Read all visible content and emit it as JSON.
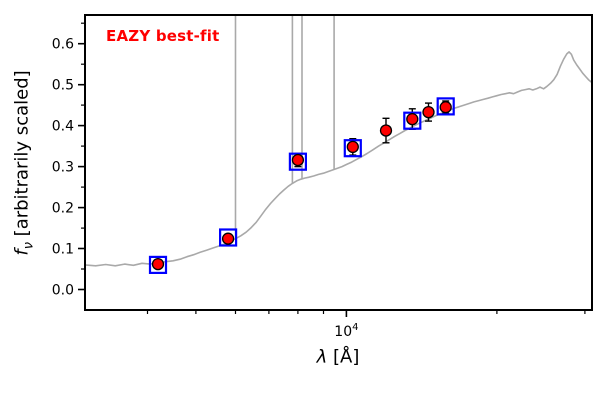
{
  "annotation": {
    "label": "EAZY best-fit",
    "color": "#ff0000"
  },
  "axes": {
    "xlabel": {
      "symbol": "λ",
      "rest": " [Å]"
    },
    "ylabel": {
      "symbol": "f",
      "sub": "ν",
      "rest": " [arbitrarily scaled]"
    }
  },
  "chart_data": {
    "type": "line",
    "title": "",
    "x_scale": "log",
    "xlim": [
      3000,
      31000
    ],
    "ylim": [
      -0.05,
      0.67
    ],
    "yticks": [
      0.0,
      0.1,
      0.2,
      0.3,
      0.4,
      0.5,
      0.6
    ],
    "ytick_labels": [
      "0.0",
      "0.1",
      "0.2",
      "0.3",
      "0.4",
      "0.5",
      "0.6"
    ],
    "y_minor_step": 0.05,
    "xtick_major": {
      "value": 10000,
      "label_base": "10",
      "label_exp": "4"
    },
    "xtick_minor": [
      4000,
      5000,
      6000,
      7000,
      8000,
      9000,
      20000,
      30000
    ],
    "colors": {
      "spectrum": "#a9a9a9",
      "model_square": "#0000ff",
      "observed_point": "#ff0000",
      "point_edge": "#000000",
      "frame": "#000000"
    },
    "series": [
      {
        "name": "EAZY best-fit model spectrum",
        "type": "line",
        "color": "#a9a9a9",
        "points": [
          [
            3000,
            0.06
          ],
          [
            3150,
            0.058
          ],
          [
            3300,
            0.061
          ],
          [
            3450,
            0.058
          ],
          [
            3600,
            0.062
          ],
          [
            3750,
            0.059
          ],
          [
            3900,
            0.064
          ],
          [
            4050,
            0.062
          ],
          [
            4200,
            0.065
          ],
          [
            4350,
            0.068
          ],
          [
            4500,
            0.07
          ],
          [
            4650,
            0.074
          ],
          [
            4800,
            0.08
          ],
          [
            4950,
            0.085
          ],
          [
            5100,
            0.091
          ],
          [
            5250,
            0.096
          ],
          [
            5400,
            0.101
          ],
          [
            5550,
            0.106
          ],
          [
            5700,
            0.111
          ],
          [
            5850,
            0.117
          ],
          [
            6000,
            0.124
          ],
          [
            6150,
            0.131
          ],
          [
            6300,
            0.14
          ],
          [
            6450,
            0.151
          ],
          [
            6600,
            0.164
          ],
          [
            6750,
            0.18
          ],
          [
            6900,
            0.196
          ],
          [
            7050,
            0.21
          ],
          [
            7200,
            0.222
          ],
          [
            7350,
            0.233
          ],
          [
            7500,
            0.243
          ],
          [
            7650,
            0.252
          ],
          [
            7800,
            0.259
          ],
          [
            7950,
            0.265
          ],
          [
            8100,
            0.269
          ],
          [
            8250,
            0.272
          ],
          [
            8400,
            0.274
          ],
          [
            8600,
            0.277
          ],
          [
            8800,
            0.281
          ],
          [
            9000,
            0.284
          ],
          [
            9200,
            0.288
          ],
          [
            9400,
            0.292
          ],
          [
            9600,
            0.296
          ],
          [
            9800,
            0.3
          ],
          [
            10000,
            0.305
          ],
          [
            10250,
            0.311
          ],
          [
            10500,
            0.318
          ],
          [
            10750,
            0.325
          ],
          [
            11000,
            0.332
          ],
          [
            11300,
            0.341
          ],
          [
            11600,
            0.35
          ],
          [
            11900,
            0.358
          ],
          [
            12200,
            0.366
          ],
          [
            12500,
            0.374
          ],
          [
            12800,
            0.381
          ],
          [
            13100,
            0.388
          ],
          [
            13400,
            0.394
          ],
          [
            13700,
            0.4
          ],
          [
            14000,
            0.406
          ],
          [
            14300,
            0.411
          ],
          [
            14600,
            0.416
          ],
          [
            14900,
            0.421
          ],
          [
            15200,
            0.426
          ],
          [
            15500,
            0.43
          ],
          [
            15800,
            0.434
          ],
          [
            16100,
            0.438
          ],
          [
            16400,
            0.442
          ],
          [
            16800,
            0.446
          ],
          [
            17200,
            0.45
          ],
          [
            17600,
            0.454
          ],
          [
            18000,
            0.458
          ],
          [
            18400,
            0.461
          ],
          [
            18800,
            0.464
          ],
          [
            19200,
            0.467
          ],
          [
            19600,
            0.47
          ],
          [
            20000,
            0.473
          ],
          [
            20400,
            0.476
          ],
          [
            20800,
            0.478
          ],
          [
            21200,
            0.48
          ],
          [
            21600,
            0.478
          ],
          [
            22000,
            0.482
          ],
          [
            22400,
            0.486
          ],
          [
            22800,
            0.488
          ],
          [
            23200,
            0.49
          ],
          [
            23600,
            0.487
          ],
          [
            24000,
            0.49
          ],
          [
            24400,
            0.494
          ],
          [
            24800,
            0.49
          ],
          [
            25200,
            0.496
          ],
          [
            25600,
            0.503
          ],
          [
            26000,
            0.512
          ],
          [
            26400,
            0.525
          ],
          [
            26800,
            0.545
          ],
          [
            27200,
            0.562
          ],
          [
            27600,
            0.575
          ],
          [
            27900,
            0.58
          ],
          [
            28200,
            0.574
          ],
          [
            28500,
            0.56
          ],
          [
            28900,
            0.548
          ],
          [
            29300,
            0.538
          ],
          [
            29700,
            0.528
          ],
          [
            30100,
            0.52
          ],
          [
            30500,
            0.512
          ],
          [
            31000,
            0.505
          ]
        ]
      },
      {
        "name": "emission lines",
        "type": "vlines",
        "color": "#a9a9a9",
        "lines": [
          {
            "x": 6000,
            "y0": 0.124,
            "y1": 0.95
          },
          {
            "x": 7800,
            "y0": 0.259,
            "y1": 0.95
          },
          {
            "x": 8150,
            "y0": 0.27,
            "y1": 0.95
          },
          {
            "x": 9450,
            "y0": 0.293,
            "y1": 0.95
          }
        ]
      },
      {
        "name": "model photometry",
        "type": "squares",
        "color": "#0000ff",
        "points": [
          [
            4200,
            0.06
          ],
          [
            5800,
            0.127
          ],
          [
            8000,
            0.312
          ],
          [
            10300,
            0.345
          ],
          [
            13550,
            0.412
          ],
          [
            15800,
            0.447
          ]
        ]
      },
      {
        "name": "observed photometry",
        "type": "errorbar_points",
        "color": "#ff0000",
        "edge": "#000000",
        "points": [
          {
            "x": 4200,
            "y": 0.062,
            "yerr": 0.01
          },
          {
            "x": 5800,
            "y": 0.124,
            "yerr": 0.01
          },
          {
            "x": 8000,
            "y": 0.316,
            "yerr": 0.016
          },
          {
            "x": 10300,
            "y": 0.348,
            "yerr": 0.02
          },
          {
            "x": 12000,
            "y": 0.388,
            "yerr": 0.03
          },
          {
            "x": 13550,
            "y": 0.416,
            "yerr": 0.025
          },
          {
            "x": 14600,
            "y": 0.433,
            "yerr": 0.022
          },
          {
            "x": 15800,
            "y": 0.445,
            "yerr": 0.015
          }
        ]
      }
    ]
  }
}
